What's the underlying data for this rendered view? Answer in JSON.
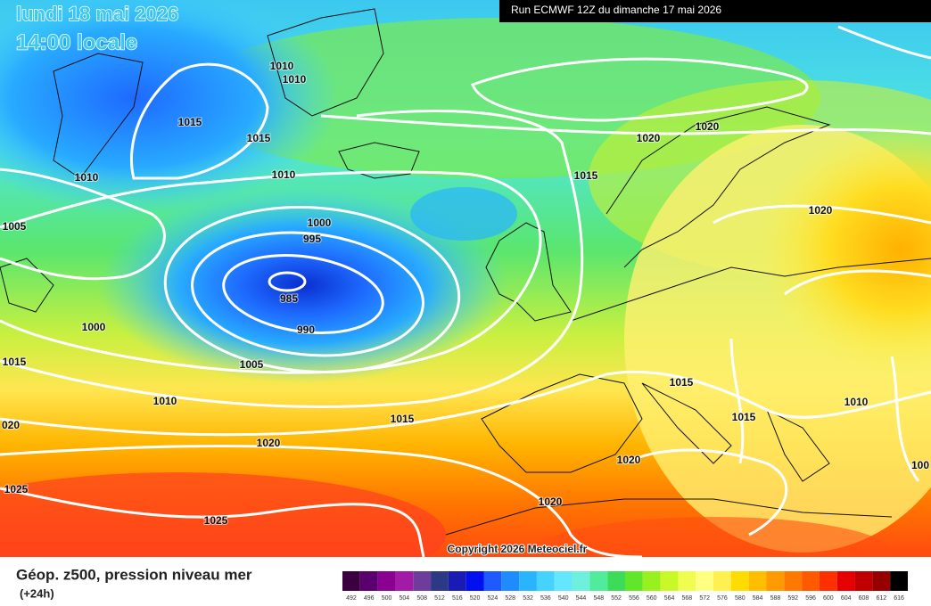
{
  "header": {
    "date": "lundi 18 mai 2026",
    "time": "14:00 locale",
    "run": "Run ECMWF 12Z du dimanche 17 mai 2026"
  },
  "isobar_labels": [
    "1010",
    "1010",
    "1015",
    "1015",
    "1010",
    "1010",
    "1000",
    "995",
    "985",
    "990",
    "1005",
    "1000",
    "1005",
    "1015",
    "1010",
    "020",
    "1015",
    "1020",
    "1025",
    "1025",
    "1020",
    "1020",
    "1015",
    "1020",
    "1015",
    "1015",
    "1010",
    "1020",
    "1020",
    "100"
  ],
  "copyright": "Copyright 2026 Meteociel.fr",
  "legend": {
    "title": "Géop. z500, pression niveau mer",
    "subtitle": "(+24h)",
    "labels": [
      "492",
      "496",
      "500",
      "504",
      "508",
      "512",
      "516",
      "520",
      "524",
      "528",
      "532",
      "536",
      "540",
      "544",
      "548",
      "552",
      "556",
      "560",
      "564",
      "568",
      "572",
      "576",
      "580",
      "584",
      "588",
      "592",
      "596",
      "600",
      "604",
      "608",
      "612",
      "616"
    ],
    "colors": [
      "#3c0040",
      "#5a006e",
      "#8a0090",
      "#a21aa6",
      "#6e3c9a",
      "#2c3a86",
      "#1a1ab4",
      "#0010f0",
      "#1e5aff",
      "#1e8cff",
      "#28b4ff",
      "#46d2ff",
      "#64e6ff",
      "#6ef0dc",
      "#50ec9c",
      "#3cdc5a",
      "#62e62a",
      "#98f01e",
      "#c8f828",
      "#f0fc50",
      "#ffff82",
      "#fff050",
      "#ffdc00",
      "#ffbe00",
      "#ff9a00",
      "#ff7800",
      "#ff5a00",
      "#ff3000",
      "#e60000",
      "#c00000",
      "#960000",
      "#000000"
    ]
  }
}
